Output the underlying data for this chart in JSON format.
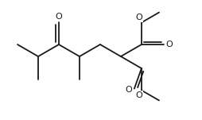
{
  "background_color": "#ffffff",
  "line_color": "#1a1a1a",
  "line_width": 1.3,
  "figsize": [
    2.54,
    1.51
  ],
  "dpi": 100,
  "xlim": [
    0,
    254
  ],
  "ylim": [
    0,
    151
  ]
}
